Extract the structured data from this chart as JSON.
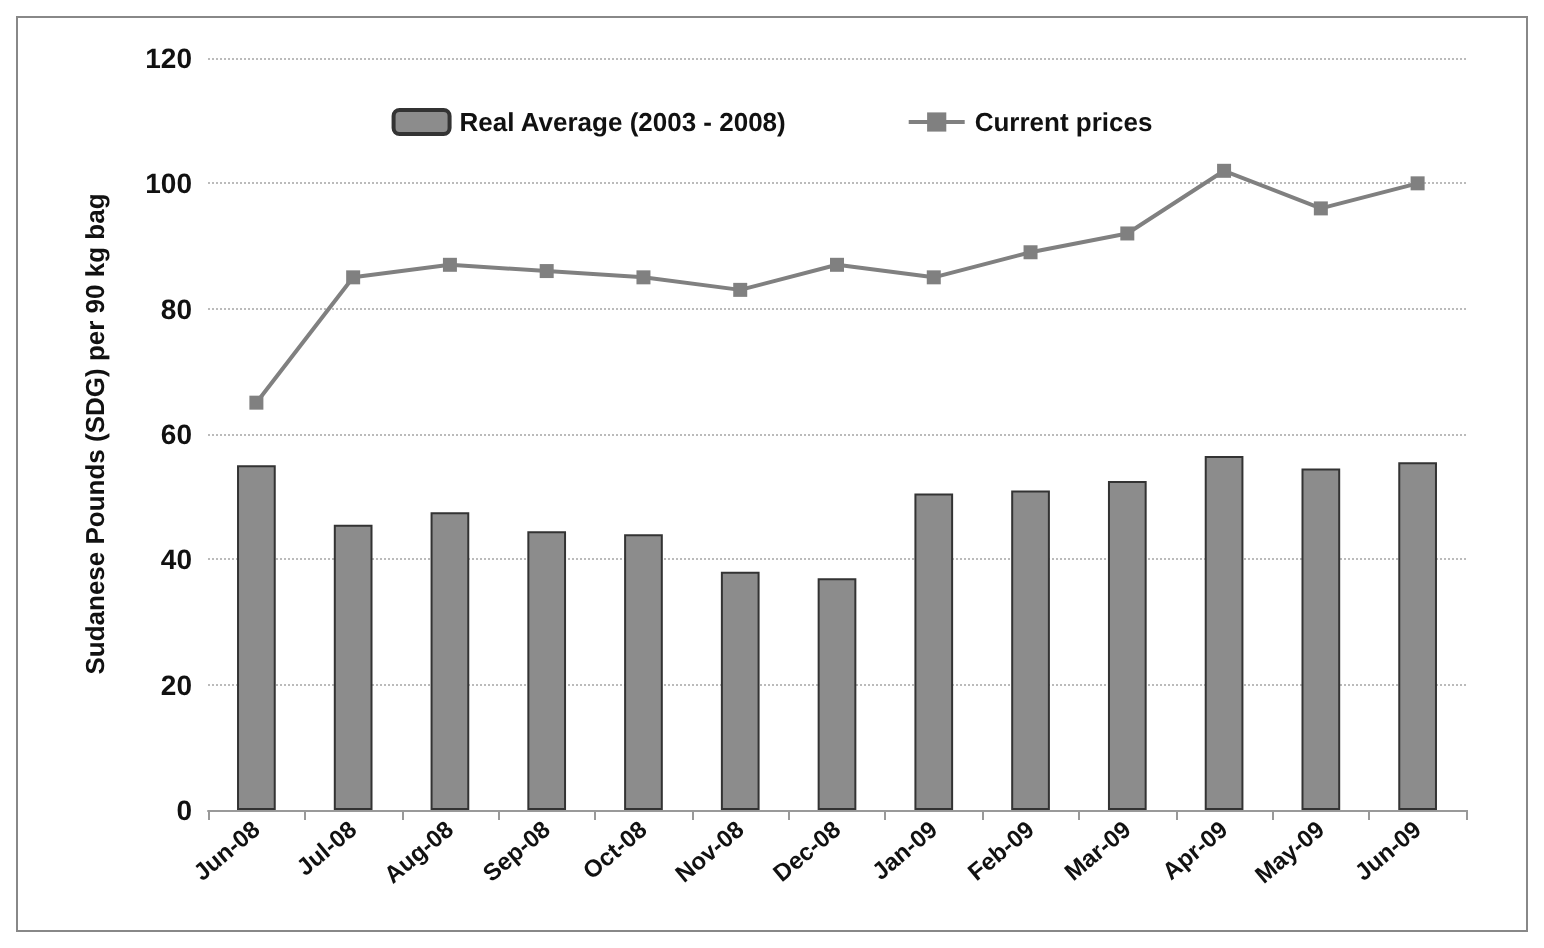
{
  "chart_data": {
    "type": "bar",
    "ylabel": "Sudanese Pounds (SDG) per 90 kg bag",
    "categories": [
      "Jun-08",
      "Jul-08",
      "Aug-08",
      "Sep-08",
      "Oct-08",
      "Nov-08",
      "Dec-08",
      "Jan-09",
      "Feb-09",
      "Mar-09",
      "Apr-09",
      "May-09",
      "Jun-09"
    ],
    "series": [
      {
        "name": "Real Average (2003 - 2008)",
        "color": "#8c8c8c",
        "values": [
          55,
          45.5,
          47.5,
          44.5,
          44,
          38,
          37,
          50.5,
          51,
          52.5,
          56.5,
          54.5,
          55.5
        ]
      },
      {
        "name": "Current prices",
        "type": "line",
        "color": "#808080",
        "values": [
          65,
          85,
          87,
          86,
          85,
          83,
          87,
          85,
          89,
          92,
          102,
          96,
          100
        ]
      }
    ],
    "ylim": [
      0,
      120
    ],
    "yticks": [
      0,
      20,
      40,
      60,
      80,
      100,
      120
    ],
    "grid": "y",
    "legend": "top",
    "marker": "square",
    "line_style": "solid"
  }
}
